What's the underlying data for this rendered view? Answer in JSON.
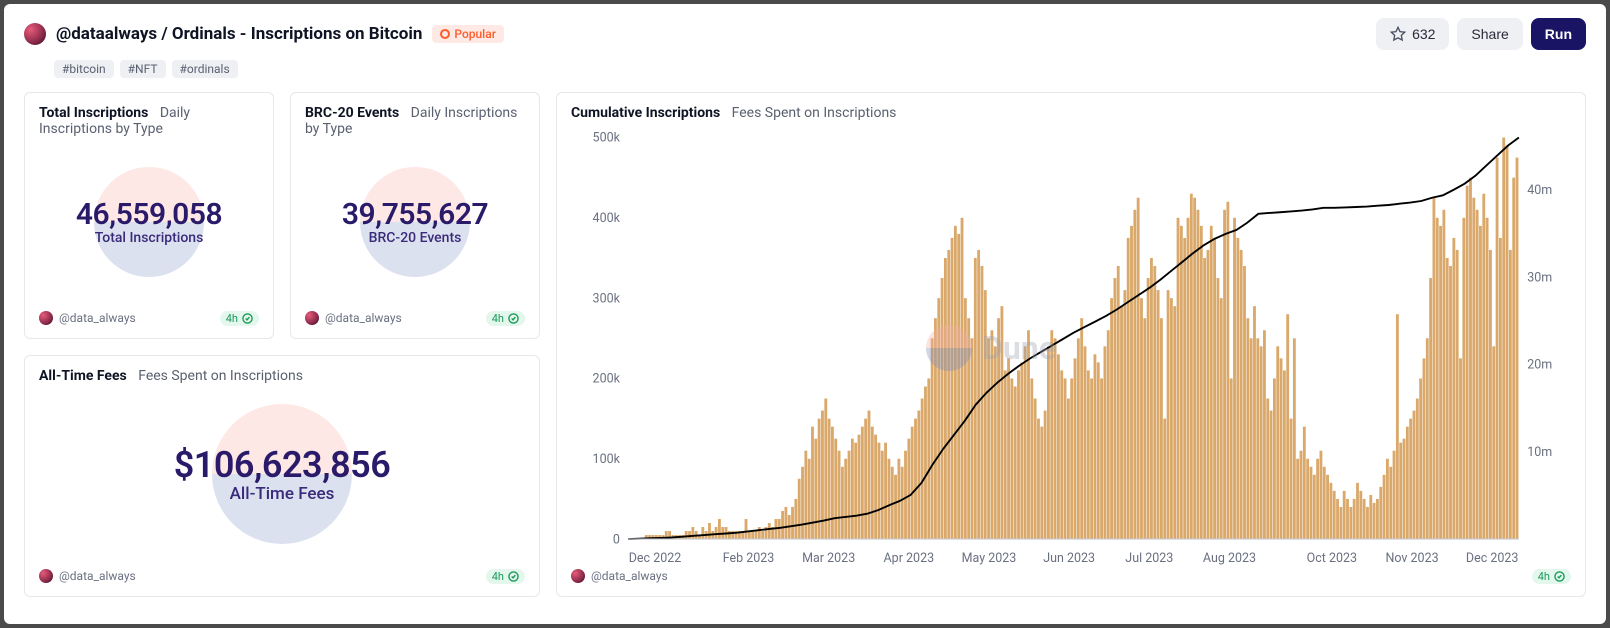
{
  "header": {
    "title": "@dataalways / Ordinals - Inscriptions on Bitcoin",
    "popular_label": "Popular",
    "star_count": "632",
    "share_label": "Share",
    "run_label": "Run"
  },
  "tags": [
    "#bitcoin",
    "#NFT",
    "#ordinals"
  ],
  "footer": {
    "user_handle": "@data_always",
    "refresh_age": "4h"
  },
  "cards": {
    "total_inscriptions": {
      "title": "Total Inscriptions",
      "subtitle": "Daily Inscriptions by Type",
      "value": "46,559,058",
      "label": "Total Inscriptions"
    },
    "brc20": {
      "title": "BRC-20 Events",
      "subtitle": "Daily Inscriptions by Type",
      "value": "39,755,627",
      "label": "BRC-20 Events"
    },
    "all_time_fees": {
      "title": "All-Time Fees",
      "subtitle": "Fees Spent on Inscriptions",
      "value": "$106,623,856",
      "label": "All-Time Fees"
    }
  },
  "chart": {
    "title": "Cumulative Inscriptions",
    "subtitle": "Fees Spent on Inscriptions",
    "watermark_text": "Dune",
    "colors": {
      "bar": "#d9a86a",
      "line": "#000000",
      "grid": "#eef0f3",
      "axis_text": "#6a7080",
      "watermark_top": "#f4b0a8",
      "watermark_bottom": "#7a8cc0",
      "watermark_text": "#9aa0b0"
    },
    "y_left": {
      "max": 500000,
      "ticks": [
        0,
        100000,
        200000,
        300000,
        400000,
        500000
      ],
      "tick_labels": [
        "0",
        "100k",
        "200k",
        "300k",
        "400k",
        "500k"
      ]
    },
    "y_right": {
      "max": 46000000,
      "ticks": [
        10000000,
        20000000,
        30000000,
        40000000
      ],
      "tick_labels": [
        "10m",
        "20m",
        "30m",
        "40m"
      ]
    },
    "x_labels": [
      "Dec 2022",
      "Feb 2023",
      "Mar 2023",
      "Apr 2023",
      "May 2023",
      "Jun 2023",
      "Jul 2023",
      "Aug 2023",
      "Oct 2023",
      "Nov 2023",
      "Dec 2023"
    ],
    "x_positions": [
      0.03,
      0.135,
      0.225,
      0.315,
      0.405,
      0.495,
      0.585,
      0.675,
      0.79,
      0.88,
      0.97
    ],
    "bars_daily": [
      0,
      0,
      0,
      0,
      0,
      1,
      1,
      1,
      1,
      1,
      1,
      2,
      2,
      1,
      1,
      1,
      1,
      2,
      2,
      3,
      2,
      1,
      3,
      2,
      4,
      2,
      3,
      5,
      3,
      3,
      2,
      2,
      2,
      2,
      2,
      5,
      2,
      2,
      2,
      3,
      2,
      3,
      4,
      3,
      5,
      5,
      7,
      8,
      6,
      8,
      10,
      15,
      18,
      22,
      20,
      28,
      25,
      30,
      32,
      35,
      30,
      28,
      25,
      22,
      18,
      20,
      22,
      25,
      24,
      26,
      28,
      30,
      32,
      28,
      26,
      24,
      22,
      24,
      20,
      18,
      16,
      20,
      18,
      22,
      25,
      28,
      30,
      32,
      35,
      38,
      40,
      50,
      55,
      60,
      65,
      70,
      72,
      75,
      78,
      76,
      80,
      60,
      55,
      50,
      70,
      72,
      68,
      62,
      50,
      52,
      48,
      55,
      58,
      42,
      45,
      40,
      38,
      42,
      44,
      48,
      52,
      40,
      35,
      30,
      28,
      32,
      48,
      52,
      50,
      46,
      42,
      40,
      35,
      40,
      45,
      50,
      55,
      48,
      42,
      40,
      46,
      44,
      40,
      48,
      52,
      60,
      65,
      68,
      58,
      62,
      75,
      78,
      82,
      85,
      60,
      55,
      65,
      70,
      68,
      62,
      55,
      30,
      62,
      60,
      58,
      80,
      78,
      75,
      80,
      86,
      85,
      82,
      78,
      70,
      72,
      78,
      75,
      65,
      60,
      82,
      84,
      40,
      80,
      75,
      72,
      68,
      55,
      50,
      58,
      50,
      48,
      52,
      35,
      32,
      40,
      48,
      45,
      42,
      56,
      30,
      50,
      20,
      22,
      28,
      20,
      18,
      16,
      20,
      22,
      18,
      16,
      14,
      12,
      10,
      8,
      12,
      10,
      8,
      10,
      14,
      12,
      10,
      8,
      11,
      9,
      10,
      13,
      16,
      20,
      18,
      22,
      56,
      24,
      25,
      28,
      30,
      32,
      35,
      40,
      45,
      50,
      65,
      85,
      80,
      78,
      82,
      70,
      68,
      75,
      72,
      45,
      80,
      88,
      90,
      85,
      82,
      78,
      86,
      80,
      72,
      48,
      95,
      75,
      100,
      98,
      72,
      90,
      95
    ],
    "bar_scale_to_yleft": 0.01,
    "cumulative_line": [
      0,
      0.001,
      0.002,
      0.003,
      0.004,
      0.006,
      0.008,
      0.01,
      0.012,
      0.014,
      0.016,
      0.019,
      0.022,
      0.025,
      0.028,
      0.032,
      0.036,
      0.041,
      0.046,
      0.052,
      0.055,
      0.058,
      0.063,
      0.072,
      0.084,
      0.095,
      0.11,
      0.14,
      0.185,
      0.225,
      0.26,
      0.295,
      0.335,
      0.365,
      0.39,
      0.412,
      0.432,
      0.45,
      0.466,
      0.482,
      0.498,
      0.514,
      0.528,
      0.542,
      0.556,
      0.572,
      0.59,
      0.608,
      0.626,
      0.646,
      0.668,
      0.69,
      0.712,
      0.732,
      0.748,
      0.76,
      0.77,
      0.788,
      0.81,
      0.812,
      0.814,
      0.816,
      0.818,
      0.821,
      0.825,
      0.825,
      0.826,
      0.827,
      0.828,
      0.83,
      0.832,
      0.835,
      0.838,
      0.842,
      0.85,
      0.856,
      0.87,
      0.885,
      0.905,
      0.93,
      0.955,
      0.98,
      1.0
    ]
  }
}
